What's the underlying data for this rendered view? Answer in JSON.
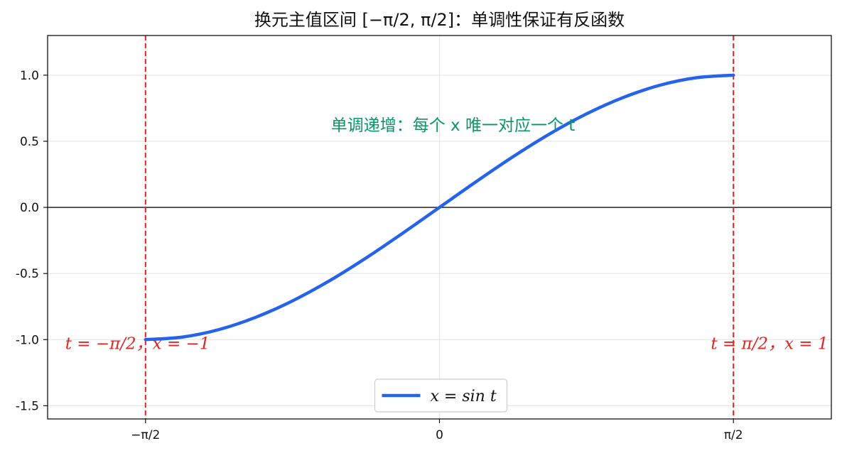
{
  "chart_data": {
    "type": "line",
    "title": "换元主值区间 [−π/2, π/2]：单调性保证有反函数",
    "xlabel": "",
    "ylabel": "",
    "xlim": [
      -2.094,
      2.094
    ],
    "ylim": [
      -1.6,
      1.3
    ],
    "xticks": [
      {
        "value": -1.5708,
        "label": "−π/2"
      },
      {
        "value": 0,
        "label": "0"
      },
      {
        "value": 1.5708,
        "label": "π/2"
      }
    ],
    "yticks": [
      {
        "value": 1.0,
        "label": "1.0"
      },
      {
        "value": 0.5,
        "label": "0.5"
      },
      {
        "value": 0.0,
        "label": "0.0"
      },
      {
        "value": -0.5,
        "label": "-0.5"
      },
      {
        "value": -1.0,
        "label": "-1.0"
      },
      {
        "value": -1.5,
        "label": "-1.5"
      }
    ],
    "grid": true,
    "series": [
      {
        "name": "x = sin t",
        "color": "#2563eb",
        "x": [
          -1.5708,
          -1.3744,
          -1.1781,
          -0.9817,
          -0.7854,
          -0.589,
          -0.3927,
          -0.1963,
          0,
          0.1963,
          0.3927,
          0.589,
          0.7854,
          0.9817,
          1.1781,
          1.3744,
          1.5708
        ],
        "y": [
          -1.0,
          -0.981,
          -0.924,
          -0.831,
          -0.707,
          -0.556,
          -0.383,
          -0.195,
          0.0,
          0.195,
          0.383,
          0.556,
          0.707,
          0.831,
          0.924,
          0.981,
          1.0
        ]
      }
    ],
    "vlines": [
      {
        "x": -1.5708,
        "color": "#dc2626"
      },
      {
        "x": 1.5708,
        "color": "#dc2626"
      }
    ],
    "hline": {
      "y": 0,
      "color": "#111111"
    },
    "annotations": [
      {
        "text": "单调递增：每个 x 唯一对应一个 t",
        "x": -0.58,
        "y": 0.58,
        "color": "#059669",
        "class": "ann-green"
      },
      {
        "text": "t = −π/2，x = −1",
        "x": -2.0,
        "y": -1.07,
        "color": "#dc2626",
        "class": "ann-red"
      },
      {
        "text": "t = π/2，x = 1",
        "x": 1.45,
        "y": -1.07,
        "color": "#dc2626",
        "class": "ann-red"
      }
    ],
    "legend": {
      "placement": "lower-center",
      "label": "x = sin t"
    }
  }
}
